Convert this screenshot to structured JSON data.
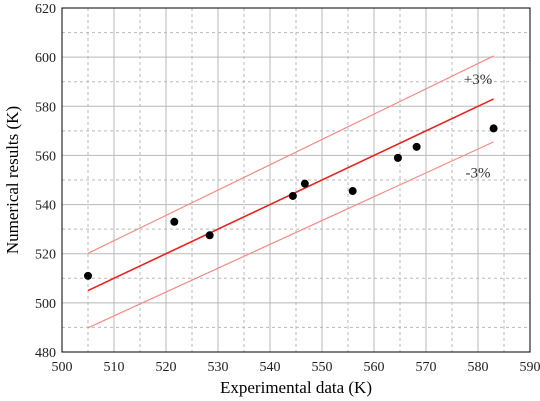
{
  "chart_data": {
    "type": "scatter",
    "xlabel": "Experimental data (K)",
    "ylabel": "Numerical results (K)",
    "xlim": [
      500,
      590
    ],
    "ylim": [
      480,
      620
    ],
    "x_ticks": [
      "500",
      "510",
      "520",
      "530",
      "540",
      "550",
      "560",
      "570",
      "580",
      "590"
    ],
    "y_ticks": [
      "480",
      "500",
      "520",
      "540",
      "560",
      "580",
      "600",
      "620"
    ],
    "grid": true,
    "points": [
      {
        "x": 505,
        "y": 511
      },
      {
        "x": 521.6,
        "y": 533
      },
      {
        "x": 528.4,
        "y": 527.5
      },
      {
        "x": 544.4,
        "y": 543.5
      },
      {
        "x": 546.7,
        "y": 548.5
      },
      {
        "x": 555.9,
        "y": 545.5
      },
      {
        "x": 564.6,
        "y": 559
      },
      {
        "x": 568.2,
        "y": 563.5
      },
      {
        "x": 583,
        "y": 571
      }
    ],
    "lines": [
      {
        "role": "identity",
        "x": [
          505,
          583
        ],
        "y": [
          505,
          583
        ],
        "color": "#e8231f"
      },
      {
        "role": "upper",
        "x": [
          505,
          583
        ],
        "y": [
          520.15,
          600.49
        ],
        "color": "#f48c86"
      },
      {
        "role": "lower",
        "x": [
          505,
          583
        ],
        "y": [
          489.85,
          565.51
        ],
        "color": "#f48c86"
      }
    ],
    "annotations": [
      {
        "text": "+3%",
        "x": 580,
        "y": 589
      },
      {
        "text": "-3%",
        "x": 580,
        "y": 551
      }
    ]
  }
}
